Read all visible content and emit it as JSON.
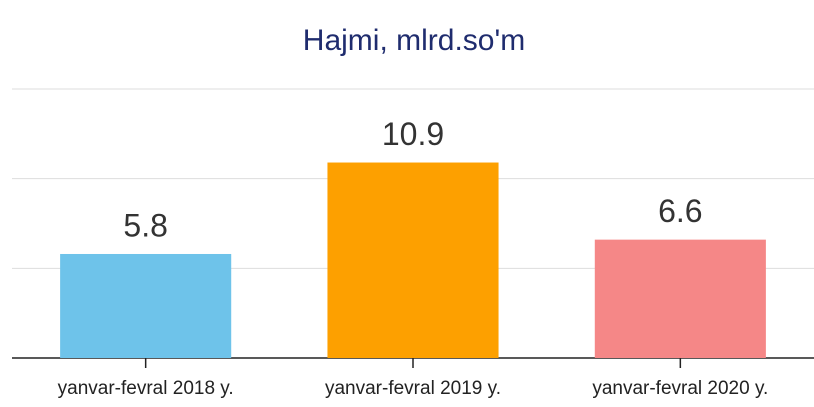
{
  "chart_data": {
    "type": "bar",
    "title": "Hajmi, mlrd.so'm",
    "categories": [
      "yanvar-fevral 2018 y.",
      "yanvar-fevral 2019 y.",
      "yanvar-fevral 2020 y."
    ],
    "values": [
      5.8,
      10.9,
      6.6
    ],
    "colors": [
      "#6ec3ea",
      "#fda000",
      "#f58787"
    ],
    "ylim": [
      0,
      15
    ],
    "yticks": [
      0,
      5,
      10,
      15
    ],
    "grid": true
  }
}
